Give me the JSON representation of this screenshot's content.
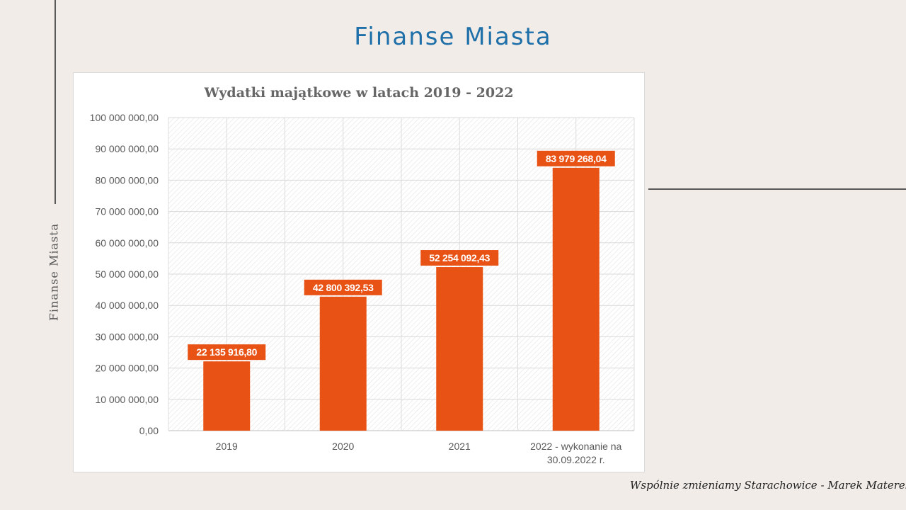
{
  "slide": {
    "title": "Finanse Miasta",
    "side_label": "Finanse Miasta",
    "footer": "Wspólnie zmieniamy Starachowice - Marek Materek"
  },
  "colors": {
    "title": "#1f6fa8",
    "bar": "#e95215",
    "background": "#f1ece8"
  },
  "chart_data": {
    "type": "bar",
    "title": "Wydatki majątkowe w latach 2019 - 2022",
    "categories": [
      "2019",
      "2020",
      "2021",
      "2022 - wykonanie na 30.09.2022 r."
    ],
    "values": [
      22135916.8,
      42800392.53,
      52254092.43,
      83979268.04
    ],
    "data_labels": [
      "22 135 916,80",
      "42 800 392,53",
      "52 254 092,43",
      "83 979 268,04"
    ],
    "ylim": [
      0,
      100000000
    ],
    "yticks": [
      0,
      10000000,
      20000000,
      30000000,
      40000000,
      50000000,
      60000000,
      70000000,
      80000000,
      90000000,
      100000000
    ],
    "ytick_labels": [
      "0,00",
      "10 000 000,00",
      "20 000 000,00",
      "30 000 000,00",
      "40 000 000,00",
      "50 000 000,00",
      "60 000 000,00",
      "70 000 000,00",
      "80 000 000,00",
      "90 000 000,00",
      "100 000 000,00"
    ],
    "xlabel": "",
    "ylabel": "",
    "grid": true,
    "legend": false
  }
}
